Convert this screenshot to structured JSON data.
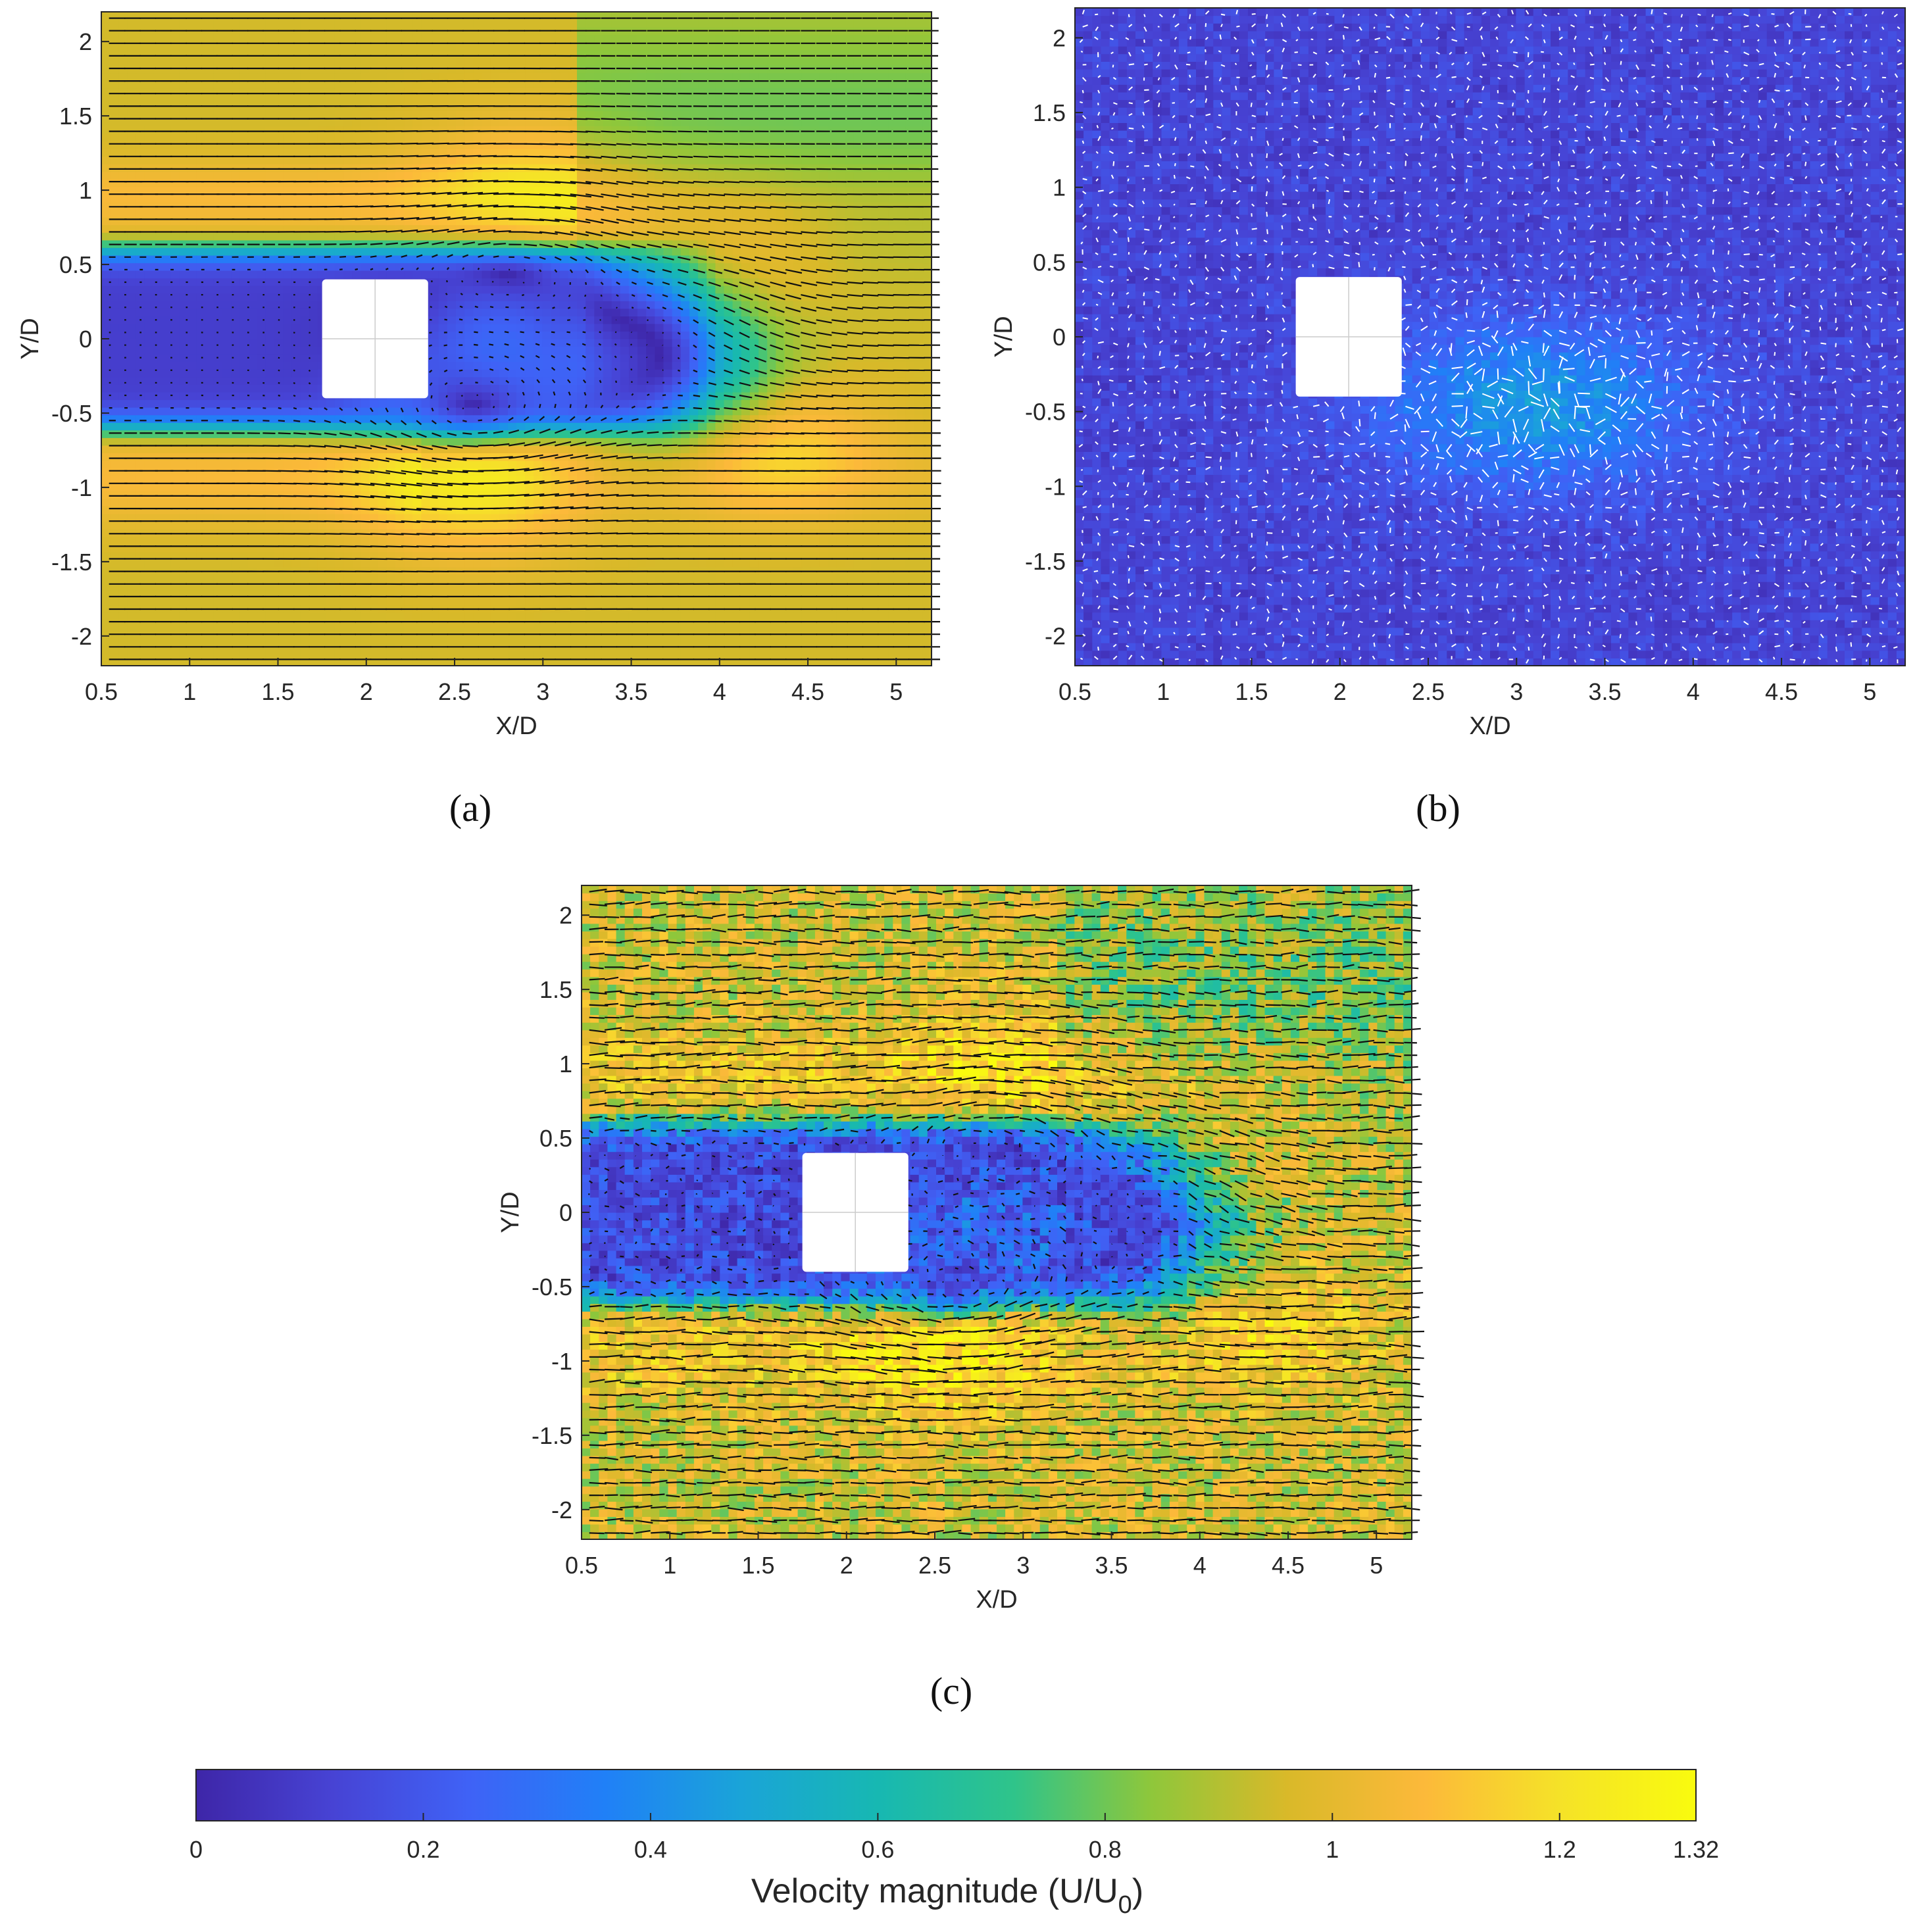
{
  "chart_data": [
    {
      "id": "a",
      "panel_label": "(a)",
      "type": "heatmap",
      "subtype": "vector-field over velocity-magnitude contour",
      "xlabel": "X/D",
      "ylabel": "Y/D",
      "xlim": [
        0.5,
        5.2
      ],
      "ylim": [
        -2.2,
        2.2
      ],
      "xticks": [
        "0.5",
        "1",
        "1.5",
        "2",
        "2.5",
        "3",
        "3.5",
        "4",
        "4.5",
        "5"
      ],
      "yticks": [
        "-2",
        "-1.5",
        "-1",
        "-0.5",
        "0",
        "0.5",
        "1",
        "1.5",
        "2"
      ],
      "obstacle": {
        "x": [
          1.75,
          2.35
        ],
        "y": [
          -0.4,
          0.4
        ]
      },
      "arrow_color": "#111111",
      "field": "time-averaged",
      "features": [
        {
          "kind": "wake",
          "x": [
            0.5,
            3.0
          ],
          "y": [
            -0.65,
            0.65
          ],
          "value": 0.15
        },
        {
          "kind": "jet",
          "x": [
            0.5,
            3.0
          ],
          "y": [
            0.7,
            1.2
          ],
          "value": 1.05
        },
        {
          "kind": "jet",
          "x": [
            0.5,
            2.0
          ],
          "y": [
            -1.3,
            -0.7
          ],
          "value": 1.05
        },
        {
          "kind": "jet",
          "x": [
            3.8,
            4.8
          ],
          "y": [
            -1.1,
            -0.3
          ],
          "value": 1.05
        },
        {
          "kind": "vortex",
          "x": 3.8,
          "y": 0.1,
          "value": 0.35
        },
        {
          "kind": "vortex",
          "x": 2.5,
          "y": -0.65,
          "value": 0.2
        }
      ]
    },
    {
      "id": "b",
      "panel_label": "(b)",
      "type": "heatmap",
      "subtype": "fluctuating vector field",
      "xlabel": "X/D",
      "ylabel": "Y/D",
      "xlim": [
        0.5,
        5.2
      ],
      "ylim": [
        -2.2,
        2.2
      ],
      "xticks": [
        "0.5",
        "1",
        "1.5",
        "2",
        "2.5",
        "3",
        "3.5",
        "4",
        "4.5",
        "5"
      ],
      "yticks": [
        "-2",
        "-1.5",
        "-1",
        "-0.5",
        "0",
        "0.5",
        "1",
        "1.5",
        "2"
      ],
      "obstacle": {
        "x": [
          1.75,
          2.35
        ],
        "y": [
          -0.4,
          0.4
        ]
      },
      "arrow_color": "#ffffff",
      "field": "fluctuation",
      "background_value": 0.1,
      "active_region": {
        "x": [
          2.3,
          4.0
        ],
        "y": [
          -1.2,
          0.5
        ],
        "value": 0.35
      }
    },
    {
      "id": "c",
      "panel_label": "(c)",
      "type": "heatmap",
      "subtype": "instantaneous vector field",
      "xlabel": "X/D",
      "ylabel": "Y/D",
      "xlim": [
        0.5,
        5.2
      ],
      "ylim": [
        -2.2,
        2.2
      ],
      "xticks": [
        "0.5",
        "1",
        "1.5",
        "2",
        "2.5",
        "3",
        "3.5",
        "4",
        "4.5",
        "5"
      ],
      "yticks": [
        "-2",
        "-1.5",
        "-1",
        "-0.5",
        "0",
        "0.5",
        "1",
        "1.5",
        "2"
      ],
      "obstacle": {
        "x": [
          1.75,
          2.35
        ],
        "y": [
          -0.4,
          0.4
        ]
      },
      "arrow_color": "#111111",
      "field": "instantaneous"
    }
  ],
  "colorbar": {
    "label": "Velocity magnitude (U/U",
    "label_subscript": "0",
    "label_close": ")",
    "min": 0,
    "max": 1.32,
    "ticks": [
      {
        "value": 0,
        "label": "0"
      },
      {
        "value": 0.2,
        "label": "0.2"
      },
      {
        "value": 0.4,
        "label": "0.4"
      },
      {
        "value": 0.6,
        "label": "0.6"
      },
      {
        "value": 0.8,
        "label": "0.8"
      },
      {
        "value": 1.0,
        "label": "1"
      },
      {
        "value": 1.2,
        "label": "1.2"
      },
      {
        "value": 1.32,
        "label": "1.32"
      }
    ],
    "colormap": [
      "#3e26a8",
      "#4743d4",
      "#3f62f6",
      "#2080f7",
      "#1aa4d8",
      "#17b8b2",
      "#2fc48a",
      "#8ec73b",
      "#d9b929",
      "#fcb93a",
      "#f5e228",
      "#f9fb0e"
    ]
  }
}
